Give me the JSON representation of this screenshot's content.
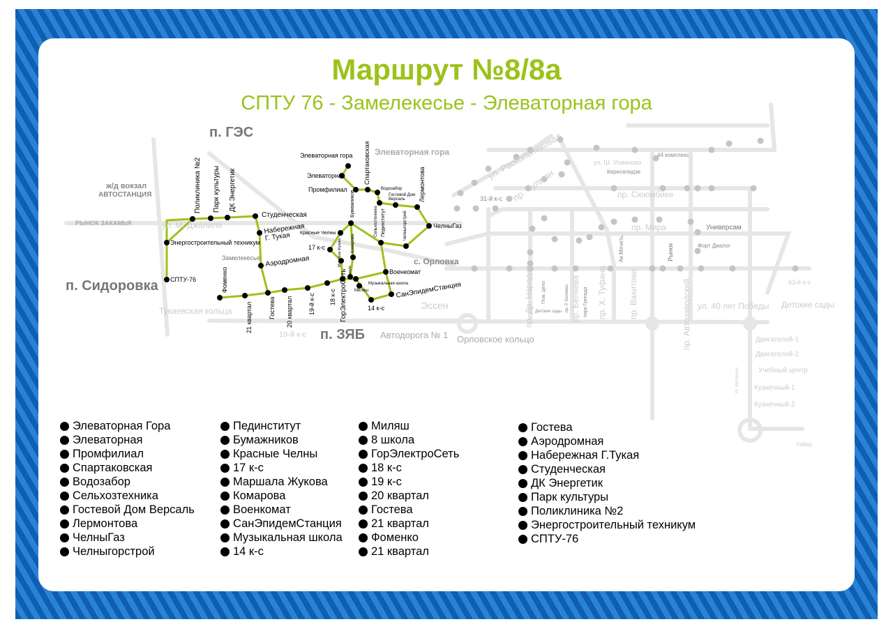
{
  "title": "Маршрут №8/8а",
  "subtitle": "СПТУ 76 - Замелекесье - Элеваторная гора",
  "colors": {
    "frame": "#1a6fc4",
    "route": "#9cc21a",
    "stop": "#000000",
    "streets": "#e3e3e3",
    "gray_stops": "#bdbdbd"
  },
  "map": {
    "stops": [
      "Элеваторная гора",
      "Элеваторная",
      "Промфилиал",
      "Спартаковская",
      "Водозабор",
      "Гостевой Дом Версаль",
      "Лермонтова",
      "ЧелныГаз",
      "Челныгорстрой",
      "Пединститут",
      "Сельхозтехника",
      "Бумажников",
      "Красные Челны",
      "17 к-с",
      "Маршала Жукова",
      "Комарова",
      "Военкомат",
      "8 школа",
      "Миляш",
      "ГорЭлектроСеть",
      "Музыкальная школа",
      "СанЭпидемСтанция",
      "14 к-с",
      "18 к-с",
      "19-й к-с",
      "20 квартал",
      "Гостева",
      "21 квартал",
      "Фоменко",
      "Аэродромная",
      "Набережная Г. Тукая",
      "Студенческая",
      "ДК Энергетик",
      "Парк культуры",
      "Поликлиника №2",
      "Энергостроительный техникум",
      "СПТУ-76"
    ],
    "places": [
      "п. ГЭС",
      "ж/д вокзал",
      "АВТОСТАНЦИЯ",
      "РЫНОК ЗАКАМЬЯ",
      "ул. М. Джалиля",
      "п. Сидоровка",
      "Замелекесье",
      "Элеваторная гора",
      "с. Орловка",
      "Эссен",
      "п. ЗЯБ",
      "19-й к-с",
      "Автодорога № 1",
      "Орловское кольцо",
      "Тукаевская кольца",
      "ул. Раскольникова",
      "пр. Чулман",
      "31-й к-с",
      "44 комплекс",
      "ул. Ш. Усманова",
      "Кереселидзе",
      "пр. Сююмбике",
      "пр. Мира",
      "Универсам",
      "Форт Диалог",
      "Ак Мечеть",
      "Рынок",
      "пр. Др. Народов",
      "Пож. депо",
      "Детские сады",
      "пр. Р. Беляева",
      "пр. Беляева",
      "парк Гренада",
      "пр. Х. Туфана",
      "пр. Вахитова",
      "пр. Автозаводский",
      "ул. 40 лет Победы",
      "Детские сады",
      "63-й к-с",
      "Двигателей-1",
      "Двигателей-2",
      "Учебный центр",
      "Кузнечный-1",
      "Кузнечный-2",
      "Ул. Моторная",
      "Хайер"
    ]
  },
  "legend": [
    [
      "Элеваторная Гора",
      "Элеваторная",
      "Промфилиал",
      "Спартаковская",
      "Водозабор",
      "Сельхозтехника",
      "Гостевой Дом Версаль",
      "Лермонтова",
      "ЧелныГаз",
      "Челныгорстрой"
    ],
    [
      "Пединститут",
      "Бумажников",
      "Красные Челны",
      "17 к-с",
      "Маршала Жукова",
      "Комарова",
      "Военкомат",
      "СанЭпидемСтанция",
      "Музыкальная школа",
      "14 к-с"
    ],
    [
      "Миляш",
      "8 школа",
      "ГорЭлектроСеть",
      "18 к-с",
      "19 к-с",
      "20 квартал",
      "Гостева",
      "21 квартал",
      "Фоменко",
      "21 квартал"
    ],
    [
      "Гостева",
      "Аэродромная",
      "Набережная Г.Тукая",
      "Студенческая",
      "ДК Энергетик",
      "Парк культуры",
      "Поликлиника №2",
      "Энергостроительный техникум",
      "СПТУ-76"
    ]
  ]
}
